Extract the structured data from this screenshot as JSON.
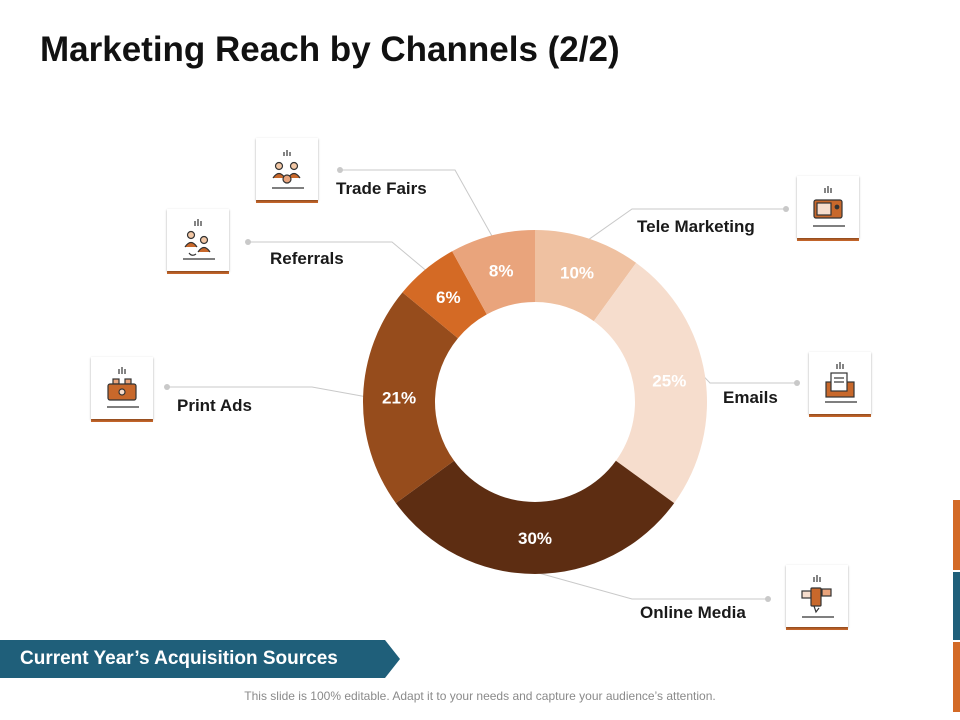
{
  "title": "Marketing Reach by Channels (2/2)",
  "banner": "Current Year’s Acquisition Sources",
  "footer": "This slide is 100% editable. Adapt it to your needs and capture your audience’s attention.",
  "colors": {
    "accent": "#c8682b",
    "banner": "#1f5f7a",
    "side_bars": [
      "#d36a26",
      "#1f5f7a",
      "#d36a26"
    ]
  },
  "chart_data": {
    "type": "pie",
    "donut": true,
    "title": "",
    "series": [
      {
        "name": "Tele Marketing",
        "value": 10,
        "label": "10%",
        "color": "#efc1a1"
      },
      {
        "name": "Emails",
        "value": 25,
        "label": "25%",
        "color": "#f6ddcd"
      },
      {
        "name": "Online Media",
        "value": 30,
        "label": "30%",
        "color": "#5d2d12"
      },
      {
        "name": "Print Ads",
        "value": 21,
        "label": "21%",
        "color": "#964c1c"
      },
      {
        "name": "Referrals",
        "value": 6,
        "label": "6%",
        "color": "#d46a25"
      },
      {
        "name": "Trade Fairs",
        "value": 8,
        "label": "8%",
        "color": "#e9a47c"
      }
    ]
  },
  "channels": [
    {
      "name": "Tele Marketing",
      "icon": "tv-icon"
    },
    {
      "name": "Emails",
      "icon": "email-icon"
    },
    {
      "name": "Online Media",
      "icon": "online-media-icon"
    },
    {
      "name": "Print Ads",
      "icon": "printer-icon"
    },
    {
      "name": "Referrals",
      "icon": "referral-people-icon"
    },
    {
      "name": "Trade Fairs",
      "icon": "trade-fair-people-icon"
    }
  ]
}
